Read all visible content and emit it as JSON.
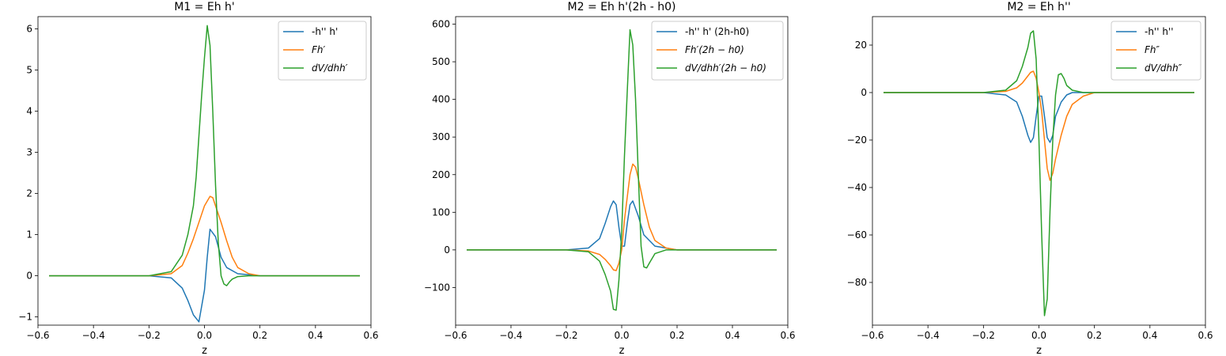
{
  "chart_data": [
    {
      "type": "line",
      "title": "M1 = Eh h'",
      "xlabel": "z",
      "ylabel": "",
      "xlim": [
        -0.6,
        0.6
      ],
      "ylim": [
        -1.2,
        6.3
      ],
      "xticks": [
        -0.6,
        -0.4,
        -0.2,
        0.0,
        0.2,
        0.4,
        0.6
      ],
      "xtick_labels": [
        "−0.6",
        "−0.4",
        "−0.2",
        "0.0",
        "0.2",
        "0.4",
        "0.6"
      ],
      "yticks": [
        -1,
        0,
        1,
        2,
        3,
        4,
        5,
        6
      ],
      "ytick_labels": [
        "−1",
        "0",
        "1",
        "2",
        "3",
        "4",
        "5",
        "6"
      ],
      "legend_position": "top-right",
      "series": [
        {
          "name": "-h'' h'",
          "color": "#1f77b4",
          "x": [
            -0.56,
            -0.2,
            -0.12,
            -0.08,
            -0.06,
            -0.04,
            -0.02,
            0.0,
            0.01,
            0.02,
            0.04,
            0.06,
            0.08,
            0.12,
            0.2,
            0.56
          ],
          "y": [
            0,
            0,
            -0.05,
            -0.3,
            -0.6,
            -0.95,
            -1.12,
            -0.35,
            0.45,
            1.13,
            0.95,
            0.45,
            0.2,
            0.05,
            0,
            0
          ]
        },
        {
          "name": "Fh′",
          "color": "#ff7f0e",
          "x": [
            -0.56,
            -0.2,
            -0.12,
            -0.08,
            -0.06,
            -0.04,
            -0.02,
            0.0,
            0.02,
            0.03,
            0.04,
            0.06,
            0.08,
            0.1,
            0.12,
            0.16,
            0.2,
            0.56
          ],
          "y": [
            0,
            0,
            0.05,
            0.25,
            0.55,
            0.9,
            1.3,
            1.7,
            1.93,
            1.9,
            1.7,
            1.3,
            0.85,
            0.45,
            0.2,
            0.05,
            0,
            0
          ]
        },
        {
          "name": "dV/dhh′",
          "color": "#2ca02c",
          "x": [
            -0.56,
            -0.2,
            -0.12,
            -0.08,
            -0.06,
            -0.04,
            -0.03,
            -0.02,
            -0.01,
            0.0,
            0.01,
            0.02,
            0.03,
            0.04,
            0.05,
            0.06,
            0.07,
            0.08,
            0.09,
            0.1,
            0.12,
            0.16,
            0.56
          ],
          "y": [
            0,
            0,
            0.1,
            0.5,
            1.0,
            1.7,
            2.4,
            3.4,
            4.4,
            5.3,
            6.08,
            5.6,
            4.0,
            2.2,
            0.8,
            0.0,
            -0.2,
            -0.24,
            -0.15,
            -0.08,
            -0.02,
            0,
            0
          ]
        }
      ]
    },
    {
      "type": "line",
      "title": "M2 = Eh h'(2h - h0)",
      "xlabel": "z",
      "ylabel": "",
      "xlim": [
        -0.6,
        0.6
      ],
      "ylim": [
        -200,
        620
      ],
      "xticks": [
        -0.6,
        -0.4,
        -0.2,
        0.0,
        0.2,
        0.4,
        0.6
      ],
      "xtick_labels": [
        "−0.6",
        "−0.4",
        "−0.2",
        "0.0",
        "0.2",
        "0.4",
        "0.6"
      ],
      "yticks": [
        -100,
        0,
        100,
        200,
        300,
        400,
        500,
        600
      ],
      "ytick_labels": [
        "−100",
        "0",
        "100",
        "200",
        "300",
        "400",
        "500",
        "600"
      ],
      "legend_position": "top-right",
      "series": [
        {
          "name": "-h'' h' (2h-h0)",
          "color": "#1f77b4",
          "x": [
            -0.56,
            -0.2,
            -0.12,
            -0.08,
            -0.06,
            -0.04,
            -0.03,
            -0.02,
            -0.01,
            0.0,
            0.01,
            0.02,
            0.03,
            0.04,
            0.06,
            0.08,
            0.12,
            0.2,
            0.56
          ],
          "y": [
            0,
            0,
            5,
            30,
            70,
            115,
            130,
            120,
            60,
            10,
            10,
            70,
            120,
            130,
            90,
            40,
            10,
            0,
            0
          ]
        },
        {
          "name": "Fh′(2h − h0)",
          "color": "#ff7f0e",
          "x": [
            -0.56,
            -0.2,
            -0.12,
            -0.08,
            -0.06,
            -0.04,
            -0.03,
            -0.02,
            -0.01,
            0.0,
            0.01,
            0.02,
            0.03,
            0.04,
            0.05,
            0.06,
            0.08,
            0.1,
            0.12,
            0.16,
            0.2,
            0.56
          ],
          "y": [
            0,
            0,
            -3,
            -12,
            -25,
            -42,
            -53,
            -55,
            -35,
            0,
            80,
            140,
            200,
            228,
            220,
            190,
            120,
            60,
            25,
            5,
            0,
            0
          ]
        },
        {
          "name": "dV/dhh′(2h − h0)",
          "color": "#2ca02c",
          "x": [
            -0.56,
            -0.2,
            -0.12,
            -0.08,
            -0.06,
            -0.04,
            -0.03,
            -0.02,
            -0.01,
            0.0,
            0.01,
            0.02,
            0.03,
            0.04,
            0.05,
            0.06,
            0.07,
            0.08,
            0.09,
            0.1,
            0.12,
            0.16,
            0.56
          ],
          "y": [
            0,
            0,
            -5,
            -30,
            -65,
            -110,
            -158,
            -160,
            -80,
            50,
            250,
            420,
            585,
            545,
            400,
            200,
            10,
            -45,
            -48,
            -35,
            -10,
            0,
            0
          ]
        }
      ]
    },
    {
      "type": "line",
      "title": "M2 = Eh h''",
      "xlabel": "z",
      "ylabel": "",
      "xlim": [
        -0.6,
        0.6
      ],
      "ylim": [
        -98,
        32
      ],
      "xticks": [
        -0.6,
        -0.4,
        -0.2,
        0.0,
        0.2,
        0.4,
        0.6
      ],
      "xtick_labels": [
        "−0.6",
        "−0.4",
        "−0.2",
        "0.0",
        "0.2",
        "0.4",
        "0.6"
      ],
      "yticks": [
        -80,
        -60,
        -40,
        -20,
        0,
        20
      ],
      "ytick_labels": [
        "−80",
        "−60",
        "−40",
        "−20",
        "0",
        "20"
      ],
      "legend_position": "top-right",
      "series": [
        {
          "name": "-h'' h''",
          "color": "#1f77b4",
          "x": [
            -0.56,
            -0.2,
            -0.12,
            -0.08,
            -0.06,
            -0.04,
            -0.03,
            -0.02,
            -0.01,
            0.0,
            0.01,
            0.02,
            0.03,
            0.04,
            0.05,
            0.06,
            0.08,
            0.1,
            0.12,
            0.16,
            0.2,
            0.56
          ],
          "y": [
            0,
            0,
            -1,
            -4,
            -10,
            -18,
            -21,
            -19,
            -10,
            -1.5,
            -1.5,
            -10,
            -19,
            -21,
            -18,
            -10,
            -4,
            -1,
            0,
            0,
            0,
            0
          ]
        },
        {
          "name": "Fh″",
          "color": "#ff7f0e",
          "x": [
            -0.56,
            -0.2,
            -0.12,
            -0.08,
            -0.06,
            -0.04,
            -0.03,
            -0.02,
            -0.01,
            0.0,
            0.01,
            0.02,
            0.03,
            0.04,
            0.05,
            0.06,
            0.08,
            0.1,
            0.12,
            0.16,
            0.2,
            0.56
          ],
          "y": [
            0,
            0,
            0.5,
            2,
            4,
            7,
            8.5,
            9,
            6,
            0,
            -8,
            -20,
            -32,
            -37,
            -34,
            -28,
            -18,
            -10,
            -5,
            -1.5,
            0,
            0
          ]
        },
        {
          "name": "dV/dhh″",
          "color": "#2ca02c",
          "x": [
            -0.56,
            -0.2,
            -0.12,
            -0.08,
            -0.06,
            -0.04,
            -0.03,
            -0.02,
            -0.01,
            0.0,
            0.01,
            0.02,
            0.03,
            0.04,
            0.05,
            0.06,
            0.07,
            0.08,
            0.09,
            0.1,
            0.12,
            0.16,
            0.2,
            0.56
          ],
          "y": [
            0,
            0,
            1,
            5,
            11,
            19,
            25,
            26,
            14,
            -20,
            -60,
            -94,
            -87,
            -50,
            -20,
            -1,
            7.5,
            8,
            6,
            3,
            1,
            0,
            0,
            0
          ]
        }
      ]
    }
  ]
}
